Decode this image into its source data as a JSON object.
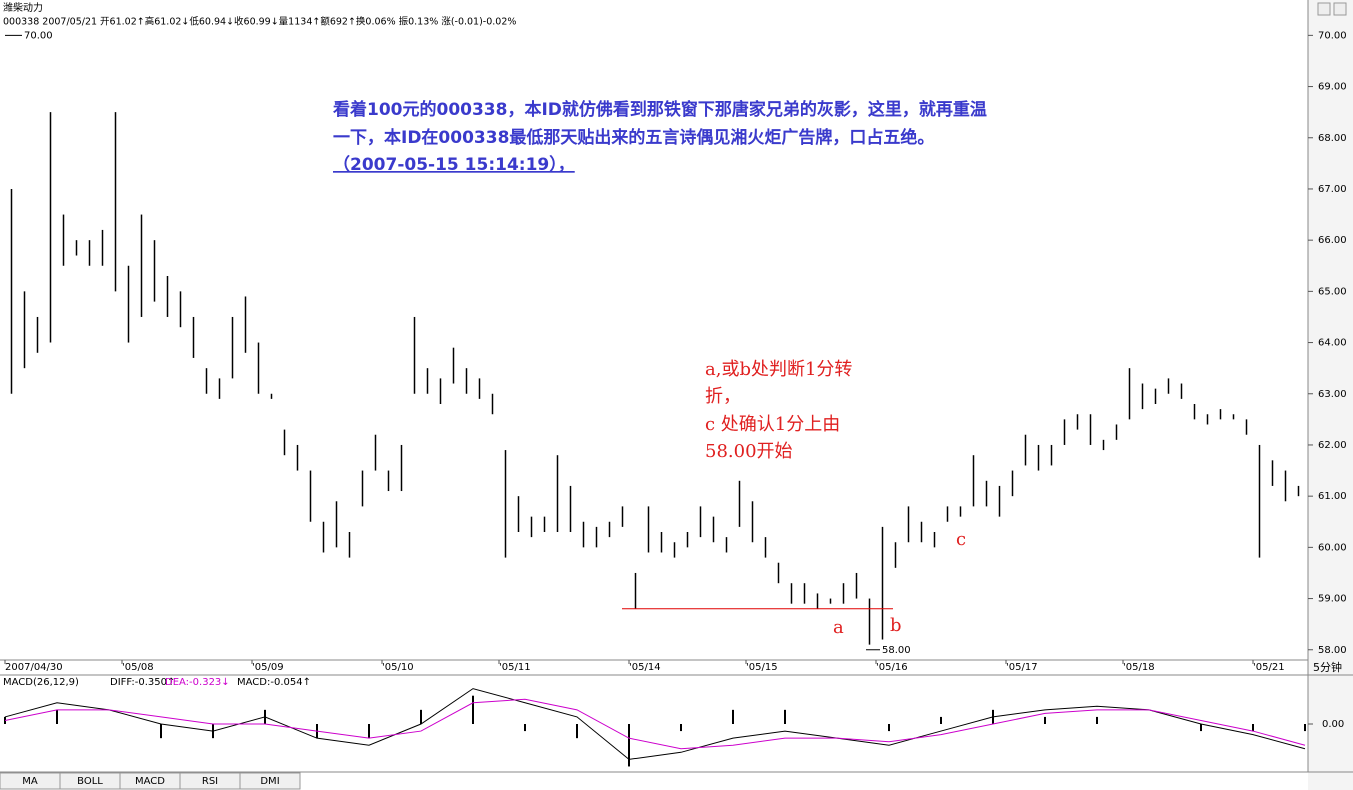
{
  "chart_data": {
    "type": "ohlc",
    "title": "潍柴动力",
    "info": "000338 2007/05/21 开61.02↑高61.02↓低60.94↓收60.99↓量1134↑额692↑换0.06% 振0.13% 涨(-0.01)-0.02%",
    "annotation": [
      "看着100元的000338，本ID就仿佛看到那铁窗下那唐家兄弟的灰影，这里，就再重温",
      "一下，本ID在000338最低那天贴出来的五言诗偶见湘火炬广告牌，口占五绝。",
      "（2007-05-15 15:14:19），"
    ],
    "note": [
      "a,或b处判断1分转",
      "折，",
      "c  处确认1分上由",
      "58.00开始"
    ],
    "point_labels": [
      "a",
      "b",
      "c"
    ],
    "period": "5分钟",
    "high_label": {
      "value": 70,
      "label": "70.00"
    },
    "low_label": {
      "value": 58,
      "label": "58.00"
    },
    "reference_line": {
      "value": 58.8,
      "color": "#e00000"
    },
    "categories": [
      "2007/04/30",
      null,
      null,
      null,
      null,
      null,
      null,
      null,
      null,
      "'05/08",
      null,
      null,
      null,
      null,
      null,
      null,
      null,
      null,
      null,
      "'05/09",
      null,
      null,
      null,
      null,
      null,
      null,
      null,
      null,
      null,
      "'05/10",
      null,
      null,
      null,
      null,
      null,
      null,
      null,
      null,
      "'05/11",
      null,
      null,
      null,
      null,
      null,
      null,
      null,
      null,
      null,
      "'05/14",
      null,
      null,
      null,
      null,
      null,
      null,
      null,
      null,
      "'05/15",
      null,
      null,
      null,
      null,
      null,
      null,
      null,
      null,
      null,
      "'05/16",
      null,
      null,
      null,
      null,
      null,
      null,
      null,
      null,
      null,
      "'05/17",
      null,
      null,
      null,
      null,
      null,
      null,
      null,
      null,
      "'05/18",
      null,
      null,
      null,
      null,
      null,
      null,
      null,
      null,
      null,
      "'05/21",
      null,
      null,
      null
    ],
    "series": [
      {
        "color": "#000000",
        "high": [
          67.0,
          65.0,
          64.5,
          68.5,
          66.5,
          66.0,
          66.0,
          66.2,
          68.5,
          65.5,
          66.5,
          66.0,
          65.3,
          65.0,
          64.5,
          63.5,
          63.3,
          64.5,
          64.9,
          64.0,
          63.0,
          62.3,
          62.0,
          61.5,
          60.5,
          60.9,
          60.3,
          61.5,
          62.2,
          61.5,
          62.0,
          64.5,
          63.5,
          63.3,
          63.9,
          63.5,
          63.3,
          63.0,
          61.9,
          61.0,
          60.6,
          60.6,
          61.8,
          61.2,
          60.5,
          60.4,
          60.5,
          60.8,
          59.5,
          60.8,
          60.3,
          60.1,
          60.3,
          60.8,
          60.6,
          60.2,
          61.3,
          60.9,
          60.2,
          59.7,
          59.3,
          59.3,
          59.1,
          59.0,
          59.3,
          59.5,
          59.0,
          60.4,
          60.1,
          60.8,
          60.5,
          60.3,
          60.8,
          60.8,
          61.8,
          61.3,
          61.2,
          61.5,
          62.2,
          62.0,
          62.0,
          62.5,
          62.6,
          62.6,
          62.1,
          62.4,
          63.5,
          63.2,
          63.1,
          63.3,
          63.2,
          62.8,
          62.6,
          62.7,
          62.6,
          62.5,
          62.0,
          61.7,
          61.5,
          61.2
        ],
        "low": [
          63.0,
          63.5,
          63.8,
          64.0,
          65.5,
          65.7,
          65.5,
          65.5,
          65.0,
          64.0,
          64.5,
          64.8,
          64.5,
          64.3,
          63.7,
          63.0,
          62.9,
          63.3,
          63.8,
          63.0,
          62.9,
          61.8,
          61.5,
          60.5,
          59.9,
          60.0,
          59.8,
          60.8,
          61.5,
          61.1,
          61.1,
          63.0,
          63.0,
          62.8,
          63.2,
          63.0,
          62.9,
          62.6,
          59.8,
          60.3,
          60.2,
          60.3,
          60.3,
          60.3,
          60.0,
          60.0,
          60.2,
          60.4,
          58.8,
          59.9,
          59.9,
          59.8,
          60.0,
          60.2,
          60.1,
          59.9,
          60.4,
          60.1,
          59.8,
          59.3,
          58.9,
          58.9,
          58.8,
          58.9,
          58.9,
          59.0,
          58.1,
          58.2,
          59.6,
          60.1,
          60.1,
          60.0,
          60.5,
          60.6,
          60.8,
          60.8,
          60.6,
          61.0,
          61.6,
          61.5,
          61.6,
          62.0,
          62.3,
          62.0,
          61.9,
          62.1,
          62.5,
          62.7,
          62.8,
          63.0,
          62.9,
          62.5,
          62.4,
          62.5,
          62.5,
          62.2,
          59.8,
          61.2,
          60.9,
          61.0
        ]
      }
    ],
    "ylim": [
      57.8,
      70.3
    ],
    "yticks": [
      {
        "value": 58,
        "label": "58.00"
      },
      {
        "value": 59,
        "label": "59.00"
      },
      {
        "value": 60,
        "label": "60.00"
      },
      {
        "value": 61,
        "label": "61.00"
      },
      {
        "value": 62,
        "label": "62.00"
      },
      {
        "value": 63,
        "label": "63.00"
      },
      {
        "value": 64,
        "label": "64.00"
      },
      {
        "value": 65,
        "label": "65.00"
      },
      {
        "value": 66,
        "label": "66.00"
      },
      {
        "value": 67,
        "label": "67.00"
      },
      {
        "value": 68,
        "label": "68.00"
      },
      {
        "value": 69,
        "label": "69.00"
      },
      {
        "value": 70,
        "label": "70.00"
      }
    ],
    "macd": {
      "title": "MACD(26,12,9)",
      "legend": [
        "DIFF:-0.350↑",
        "DEA:-0.323↓",
        "MACD:-0.054↑"
      ],
      "diff_color": "#000000",
      "dea_color": "#cc00cc",
      "hist_color": "#000000",
      "diff": [
        0.1,
        0.3,
        0.2,
        0,
        -0.1,
        0.1,
        -0.2,
        -0.3,
        0.0,
        0.5,
        0.3,
        0.1,
        -0.5,
        -0.4,
        -0.2,
        -0.1,
        -0.2,
        -0.3,
        -0.1,
        0.1,
        0.2,
        0.25,
        0.2,
        0.0,
        -0.15,
        -0.35
      ],
      "dea": [
        0.05,
        0.2,
        0.2,
        0.1,
        0.0,
        0.0,
        -0.1,
        -0.2,
        -0.1,
        0.3,
        0.35,
        0.2,
        -0.2,
        -0.35,
        -0.3,
        -0.2,
        -0.2,
        -0.25,
        -0.15,
        0.0,
        0.15,
        0.2,
        0.2,
        0.05,
        -0.1,
        -0.3
      ],
      "hist": [
        0.1,
        0.2,
        0,
        -0.2,
        -0.2,
        0.2,
        -0.2,
        -0.2,
        0.2,
        0.4,
        -0.1,
        -0.2,
        -0.6,
        -0.1,
        0.2,
        0.2,
        0,
        -0.1,
        0.1,
        0.2,
        0.1,
        0.1,
        0,
        -0.1,
        -0.1,
        -0.1
      ],
      "ylim": [
        -0.65,
        0.65
      ],
      "yticks": [
        {
          "value": 0,
          "label": "0.00"
        }
      ]
    },
    "tabs": [
      "MA",
      "BOLL",
      "MACD",
      "RSI",
      "DMI"
    ]
  }
}
